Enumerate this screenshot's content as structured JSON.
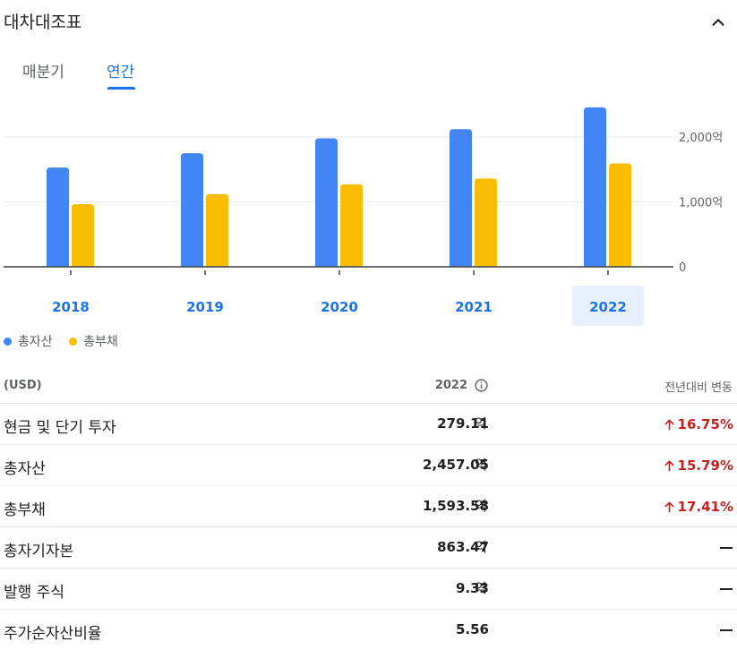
{
  "section": {
    "title": "대차대조표"
  },
  "tabs": [
    {
      "label": "매분기",
      "selected": false
    },
    {
      "label": "연간",
      "selected": true
    }
  ],
  "colors": {
    "accent": "#1a73e8",
    "series_assets": "#4285f4",
    "series_liabilities": "#fbbc04",
    "negative": "#c5221f",
    "selected_year_bg": "#e8f0fe"
  },
  "chart_data": {
    "type": "bar",
    "categories": [
      "2018",
      "2019",
      "2020",
      "2021",
      "2022"
    ],
    "series": [
      {
        "name": "총자산",
        "values": [
          1530,
          1750,
          1980,
          2120,
          2457.05
        ]
      },
      {
        "name": "총부채",
        "values": [
          965,
          1120,
          1270,
          1360,
          1593.58
        ]
      }
    ],
    "yticks": [
      "2,000억",
      "1,000억",
      "0"
    ],
    "ytick_values": [
      2000,
      1000,
      0
    ],
    "ylim": [
      0,
      2500
    ],
    "selected_category": "2022",
    "grid": true,
    "legend_position": "bottom-left"
  },
  "table": {
    "unit_header": "(USD)",
    "year_header": "2022",
    "change_header": "전년대비 변동",
    "rows": [
      {
        "label": "현금 및 단기 투자",
        "value": "279.11",
        "unit": "억",
        "change": "16.75%"
      },
      {
        "label": "총자산",
        "value": "2,457.05",
        "unit": "억",
        "change": "15.79%"
      },
      {
        "label": "총부채",
        "value": "1,593.58",
        "unit": "억",
        "change": "17.41%"
      },
      {
        "label": "총자기자본",
        "value": "863.47",
        "unit": "억",
        "change": ""
      },
      {
        "label": "발행 주식",
        "value": "9.33",
        "unit": "억",
        "change": ""
      },
      {
        "label": "주가순자산비율",
        "value": "5.56",
        "unit": "",
        "change": ""
      }
    ]
  }
}
